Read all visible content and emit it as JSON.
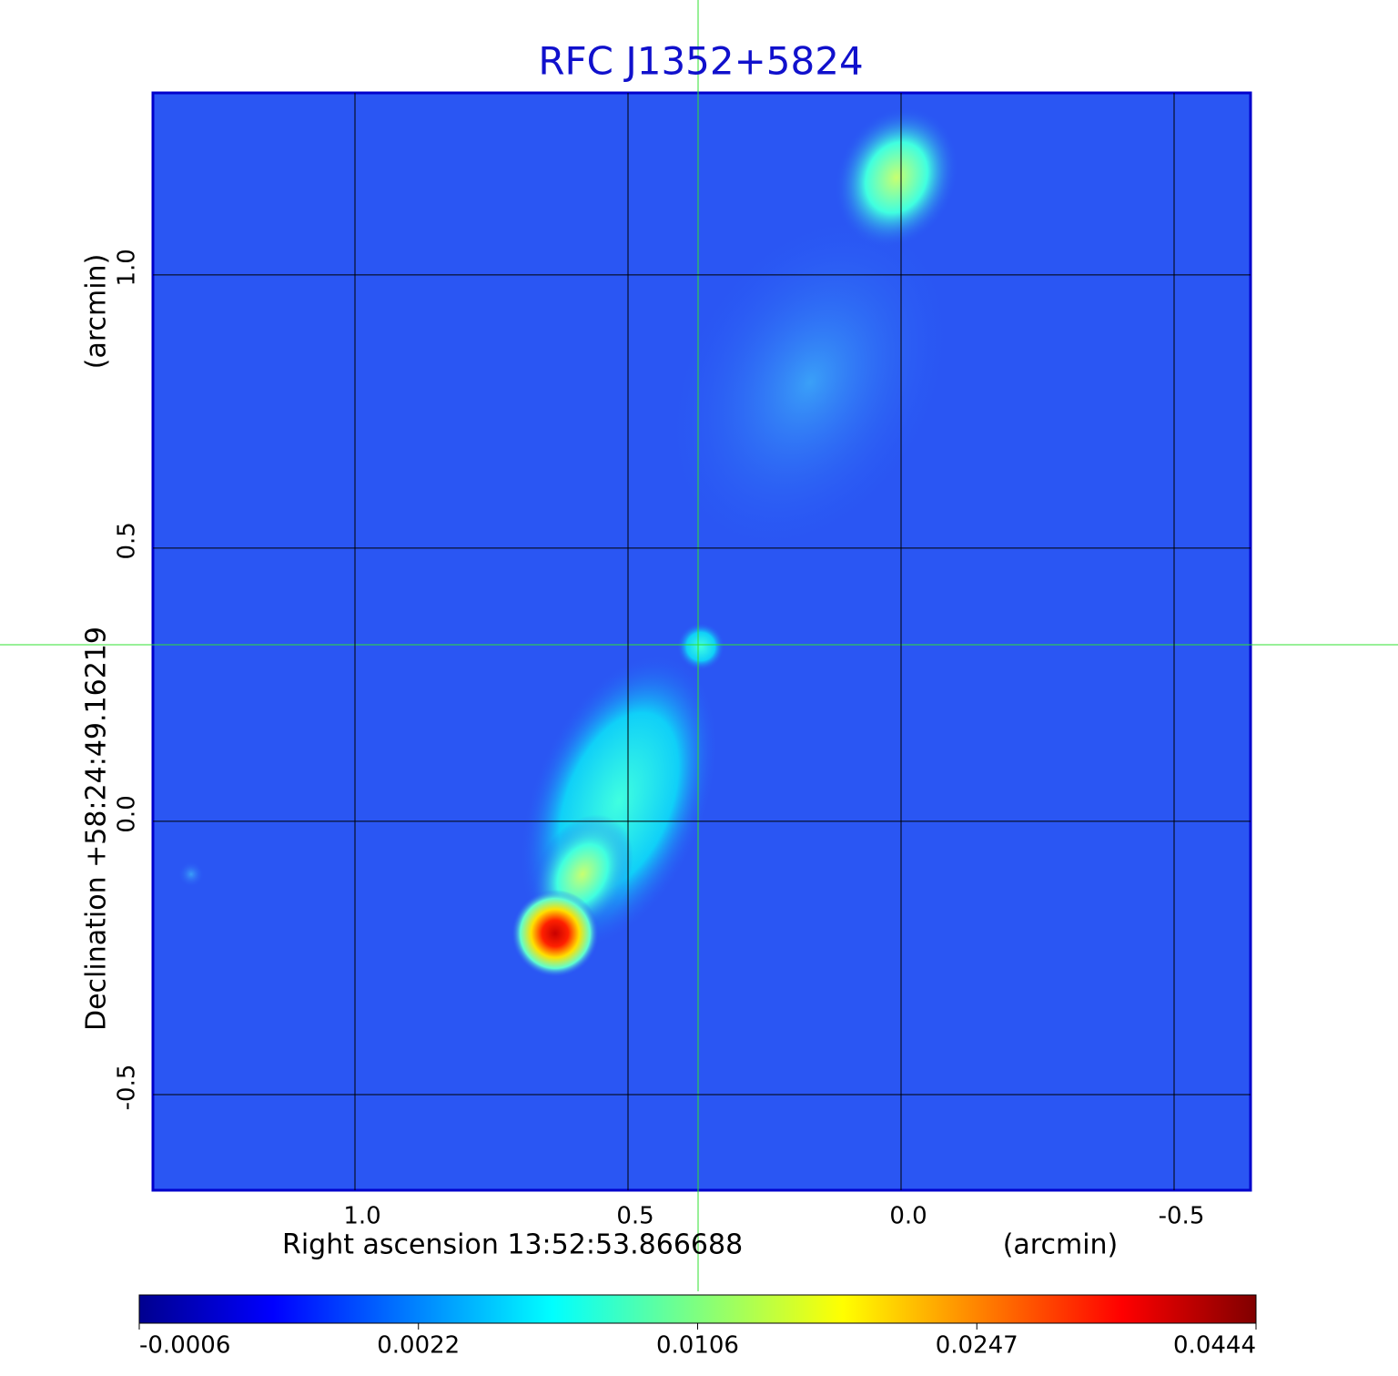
{
  "chart_data": {
    "type": "image",
    "title": "RFC J1352+5824",
    "xlabel": "Right ascension  13:52:53.866688",
    "xunit": "(arcmin)",
    "ylabel": "Declination  +58:24:49.16219",
    "yunit": "(arcmin)",
    "xlim": [
      1.37,
      -0.64
    ],
    "xticks": [
      {
        "value": 1,
        "label": "1.0"
      },
      0.5,
      {
        "value": 0,
        "label": "0.0"
      },
      -0.5
    ],
    "ylim": [
      -0.675,
      1.333
    ],
    "yticks": [
      -0.5,
      {
        "value": 0,
        "label": "0.0"
      },
      0.5,
      {
        "value": 1,
        "label": "1.0"
      }
    ],
    "grid": true,
    "colorbar_ticks": [
      -0.0006,
      0.0022,
      0.0106,
      0.0247,
      0.0444
    ]
  }
}
